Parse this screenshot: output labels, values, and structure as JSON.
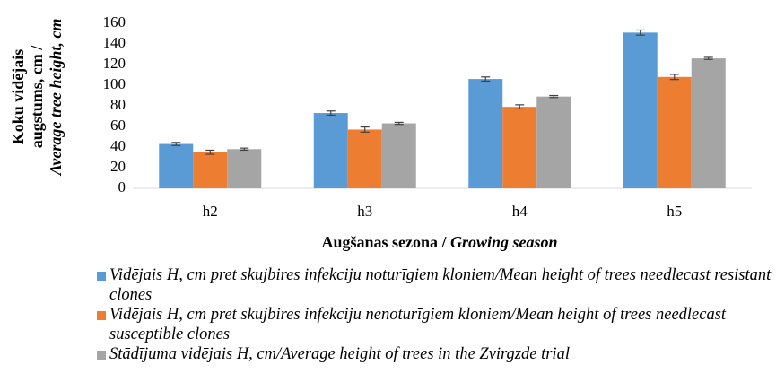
{
  "chart_data": {
    "type": "bar",
    "ylabel": [
      "Koku vidējais",
      "augstums, cm /",
      "Average tree height, cm"
    ],
    "xlabel": [
      "Augšanas  sezona / ",
      "Growing season"
    ],
    "categories": [
      "h2",
      "h3",
      "h4",
      "h5"
    ],
    "series": [
      {
        "name": "Vidējais H, cm pret skujbires infekciju noturīgiem kloniem/Mean height of trees needlecast resistant clones",
        "color": "#5b9bd5",
        "values": [
          43,
          73,
          106,
          151
        ],
        "errors": [
          1.5,
          2,
          2,
          2.5
        ]
      },
      {
        "name": "Vidējais H, cm pret skujbires infekciju nenoturīgiem kloniem/Mean height of trees needlecast susceptible clones",
        "color": "#ed7d31",
        "values": [
          35,
          57,
          79,
          108
        ],
        "errors": [
          2,
          2.5,
          2,
          2.5
        ]
      },
      {
        "name": "Stādījuma vidējais H, cm/Average height of trees in the Zvirgzde trial",
        "color": "#a5a5a5",
        "values": [
          38,
          63,
          89,
          126
        ],
        "errors": [
          1,
          1,
          1,
          1
        ]
      }
    ],
    "ylim": [
      0,
      160
    ],
    "yticks": [
      0,
      20,
      40,
      60,
      80,
      100,
      120,
      140,
      160
    ],
    "grid": false,
    "legend": "bottom"
  }
}
